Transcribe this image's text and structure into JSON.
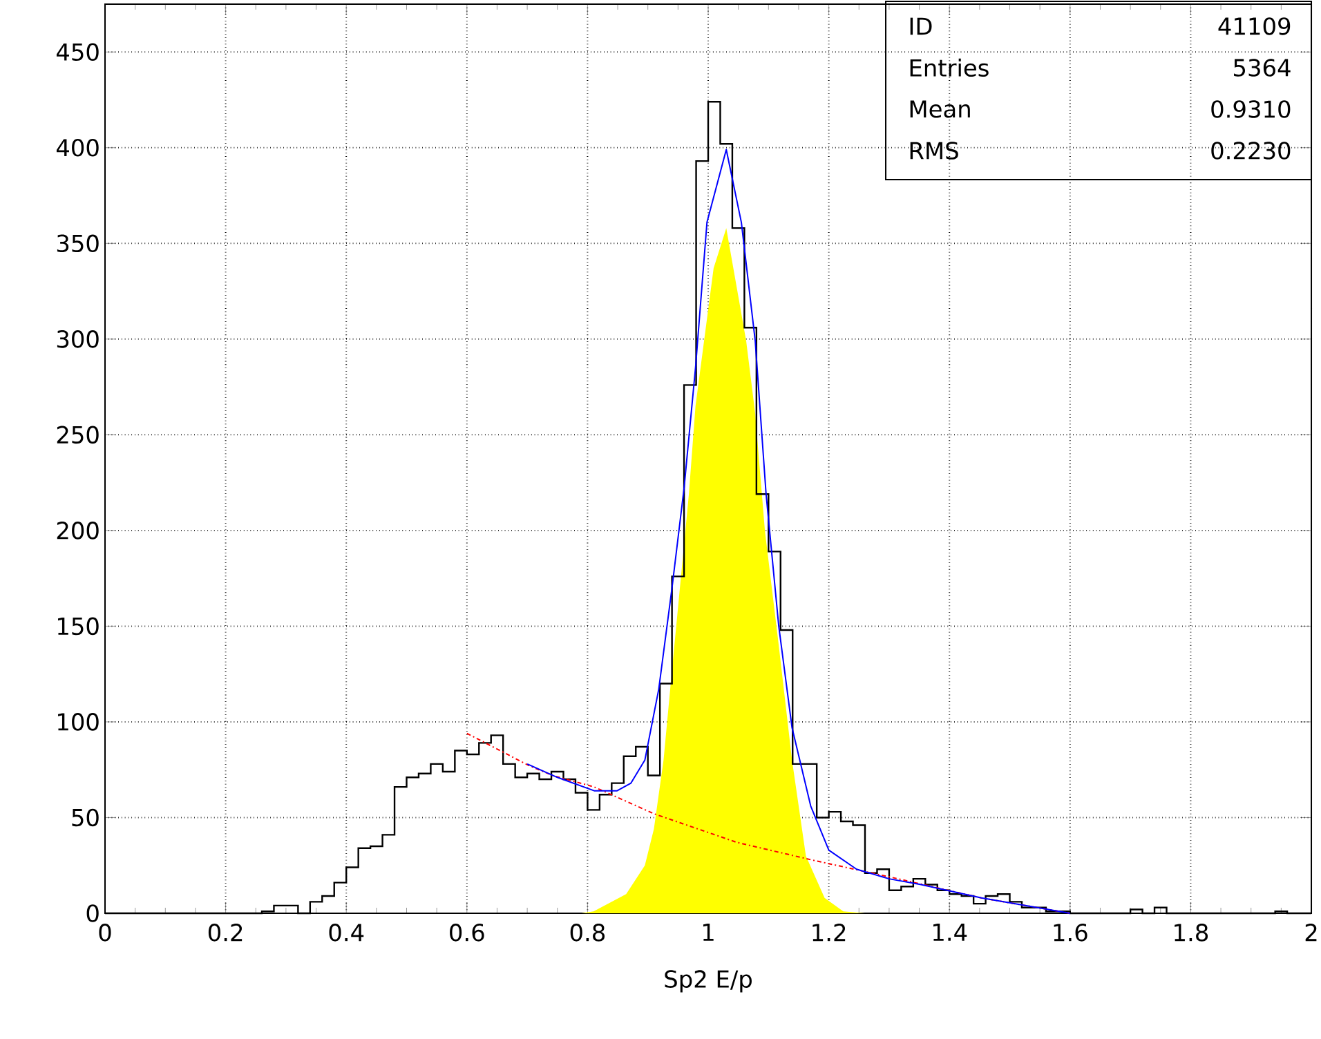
{
  "chart_data": {
    "type": "histogram",
    "xlabel": "Sp2 E/p",
    "xlim": [
      0,
      2
    ],
    "ylim": [
      0,
      475
    ],
    "xticks": [
      0,
      0.2,
      0.4,
      0.6,
      0.8,
      1,
      1.2,
      1.4,
      1.6,
      1.8,
      2
    ],
    "yticks": [
      0,
      50,
      100,
      150,
      200,
      250,
      300,
      350,
      400,
      450
    ],
    "grid": true,
    "annotations": [
      "ID",
      "41109",
      "Entries",
      "5364",
      "Mean",
      "0.9310",
      "RMS",
      "0.2230"
    ],
    "series": [
      {
        "color": "#000000",
        "bins": [
          0,
          0.02,
          0.04,
          0.06,
          0.08,
          0.1,
          0.12,
          0.14,
          0.16,
          0.18,
          0.2,
          0.22,
          0.24,
          0.26,
          0.28,
          0.3,
          0.32,
          0.34,
          0.36,
          0.38,
          0.4,
          0.42,
          0.44,
          0.46,
          0.48,
          0.5,
          0.52,
          0.54,
          0.56,
          0.58,
          0.6,
          0.62,
          0.64,
          0.66,
          0.68,
          0.7,
          0.72,
          0.74,
          0.76,
          0.78,
          0.8,
          0.82,
          0.84,
          0.86,
          0.88,
          0.9,
          0.92,
          0.94,
          0.96,
          0.98,
          1,
          1.02,
          1.04,
          1.06,
          1.08,
          1.1,
          1.12,
          1.14,
          1.16,
          1.18,
          1.2,
          1.22,
          1.24,
          1.26,
          1.28,
          1.3,
          1.32,
          1.34,
          1.36,
          1.38,
          1.4,
          1.42,
          1.44,
          1.46,
          1.48,
          1.5,
          1.52,
          1.54,
          1.56,
          1.58,
          1.6,
          1.62,
          1.64,
          1.66,
          1.68,
          1.7,
          1.72,
          1.74,
          1.76,
          1.78,
          1.8,
          1.82,
          1.84,
          1.86,
          1.88,
          1.9,
          1.92,
          1.94,
          1.96,
          1.98,
          2
        ],
        "values": [
          0,
          0,
          0,
          0,
          0,
          0,
          0,
          0,
          0,
          0,
          0,
          0,
          0,
          1,
          4,
          4,
          0,
          6,
          9,
          16,
          24,
          34,
          35,
          41,
          66,
          71,
          73,
          78,
          74,
          85,
          83,
          89,
          93,
          78,
          71,
          73,
          70,
          74,
          70,
          63,
          54,
          62,
          68,
          82,
          87,
          72,
          120,
          176,
          276,
          393,
          424,
          402,
          358,
          306,
          219,
          189,
          148,
          78,
          78,
          50,
          53,
          48,
          46,
          21,
          23,
          12,
          14,
          18,
          15,
          12,
          10,
          9,
          5,
          9,
          10,
          6,
          3,
          3,
          1,
          1,
          0,
          0,
          0,
          0,
          0,
          2,
          0,
          3,
          0,
          0,
          0,
          0,
          0,
          0,
          0,
          0,
          0,
          1,
          0,
          0
        ]
      },
      {
        "type": "area",
        "color": "#ffff00",
        "x": [
          0.79,
          0.81,
          0.864,
          0.895,
          0.91,
          0.926,
          0.937,
          0.968,
          0.979,
          1.009,
          1.03,
          1.063,
          1.078,
          1.094,
          1.117,
          1.139,
          1.162,
          1.193,
          1.224,
          1.26
        ],
        "values": [
          0,
          1,
          10,
          25,
          44,
          80,
          117,
          219,
          265,
          337,
          358,
          299,
          261,
          200,
          140,
          80,
          30,
          8,
          1,
          0
        ]
      },
      {
        "type": "line",
        "color": "#ff0000",
        "line_style": "dashed",
        "x": [
          0.6,
          0.704,
          0.742,
          0.811,
          0.91,
          1.048,
          1.17,
          1.315,
          1.453,
          1.582,
          1.6
        ],
        "values": [
          94,
          77,
          72,
          66,
          52,
          37,
          28,
          18,
          8,
          1,
          0
        ]
      },
      {
        "type": "line",
        "color": "#0000ff",
        "x": [
          0.7,
          0.75,
          0.811,
          0.849,
          0.872,
          0.895,
          0.918,
          0.94,
          0.96,
          0.979,
          0.998,
          1.03,
          1.055,
          1.078,
          1.096,
          1.117,
          1.139,
          1.17,
          1.2,
          1.246,
          1.3,
          1.353,
          1.453,
          1.582,
          1.6
        ],
        "values": [
          78,
          71,
          64,
          64,
          68,
          80,
          117,
          170,
          222,
          285,
          361,
          399,
          361,
          299,
          219,
          150,
          97,
          56,
          33,
          23,
          18,
          15,
          8,
          1,
          0
        ]
      }
    ]
  }
}
